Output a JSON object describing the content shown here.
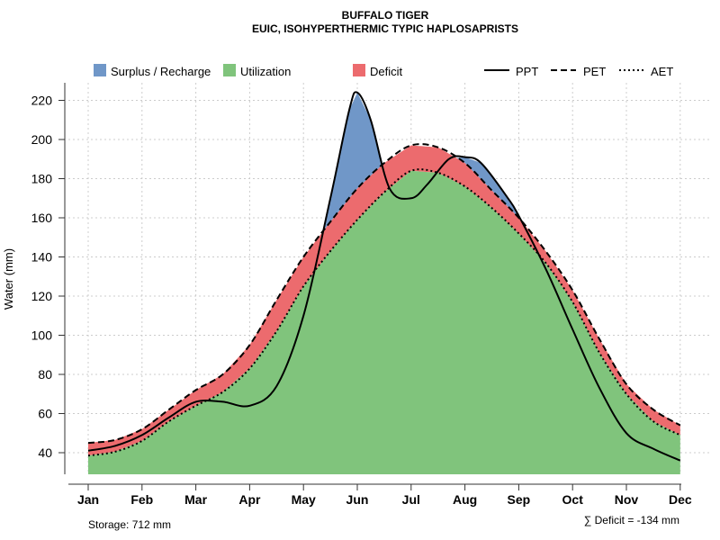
{
  "chart_data": {
    "type": "area",
    "title": "BUFFALO TIGER",
    "subtitle": "EUIC, ISOHYPERTHERMIC TYPIC HAPLOSAPRISTS",
    "xlabel": "",
    "ylabel": "Water (mm)",
    "ylim": [
      28,
      230
    ],
    "yticks": [
      40,
      60,
      80,
      100,
      120,
      140,
      160,
      180,
      200,
      220
    ],
    "categories": [
      "Jan",
      "Feb",
      "Mar",
      "Apr",
      "May",
      "Jun",
      "Jul",
      "Aug",
      "Sep",
      "Oct",
      "Nov",
      "Dec"
    ],
    "grid": true,
    "legend_position": "top",
    "legend": {
      "fills": [
        {
          "name": "Surplus / Recharge",
          "color": "#7097c8"
        },
        {
          "name": "Utilization",
          "color": "#80c47c"
        },
        {
          "name": "Deficit",
          "color": "#ec6b6e"
        }
      ],
      "lines": [
        {
          "name": "PPT",
          "style": "solid"
        },
        {
          "name": "PET",
          "style": "dashed"
        },
        {
          "name": "AET",
          "style": "dotted"
        }
      ]
    },
    "series": [
      {
        "name": "PPT",
        "x": [
          0,
          0.5,
          1,
          1.5,
          2,
          2.5,
          3,
          3.5,
          4,
          4.5,
          4.85,
          5,
          5.25,
          5.6,
          6,
          6.3,
          6.7,
          7,
          7.3,
          7.8,
          8,
          8.5,
          9,
          9.5,
          10,
          10.5,
          11
        ],
        "values": [
          41,
          43.5,
          49,
          58,
          66,
          66,
          64,
          74,
          110,
          170,
          215,
          224,
          210,
          175,
          170,
          177,
          190,
          191,
          188,
          170,
          161,
          134,
          103,
          73,
          50,
          42,
          36
        ]
      },
      {
        "name": "PET",
        "x": [
          0,
          0.5,
          1,
          1.5,
          2,
          2.5,
          3,
          3.5,
          4,
          4.5,
          5,
          5.5,
          6,
          6.5,
          7,
          7.5,
          8,
          8.5,
          9,
          9.5,
          10,
          10.5,
          11
        ],
        "values": [
          45,
          46.5,
          52,
          62,
          72,
          80,
          95,
          118,
          140,
          158,
          175,
          188,
          197,
          196,
          188,
          174,
          160,
          143,
          123,
          98,
          75,
          62,
          54
        ]
      },
      {
        "name": "AET",
        "x": [
          0,
          0.5,
          1,
          1.5,
          2,
          2.5,
          3,
          3.5,
          4,
          4.5,
          5,
          5.5,
          6,
          6.5,
          7,
          7.5,
          8,
          8.5,
          9,
          9.5,
          10,
          10.5,
          11
        ],
        "values": [
          38.5,
          40.5,
          46,
          56,
          64,
          71,
          83,
          102,
          125,
          143,
          159,
          173,
          184,
          183,
          176,
          165,
          152,
          137,
          117,
          91,
          70,
          56,
          49
        ]
      }
    ],
    "annotations": {
      "storage": "Storage: 712 mm",
      "deficit": "∑ Deficit = -134 mm"
    }
  }
}
